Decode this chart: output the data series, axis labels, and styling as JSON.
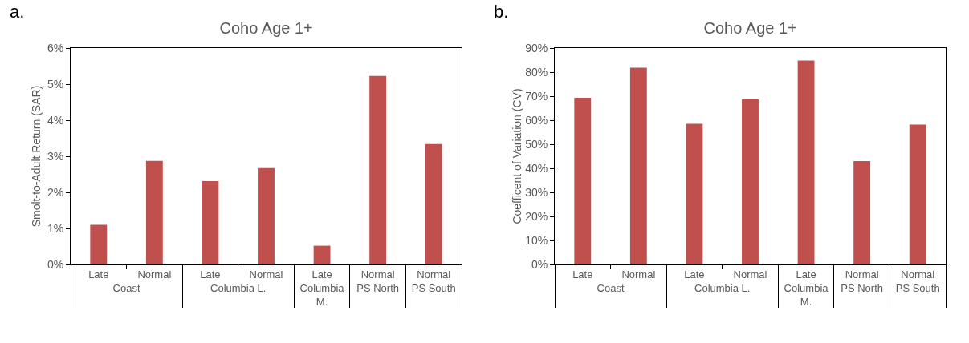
{
  "chart_data": [
    {
      "type": "bar",
      "title": "Coho Age 1+",
      "ylabel": "Smolt-to-Adult Return (SAR)",
      "annotations": [
        "a.",
        "Coast",
        "Columbia L.",
        "Columbia M.",
        "PS North",
        "PS South"
      ],
      "categories": [
        "Late",
        "Normal",
        "Late",
        "Normal",
        "Late",
        "Normal",
        "Normal"
      ],
      "values": [
        1.1,
        2.87,
        2.31,
        2.67,
        0.52,
        5.23,
        3.34
      ],
      "color": "#c0504d",
      "ylim": [
        0,
        6
      ],
      "yticks": [
        {
          "value": 0,
          "label": "0%"
        },
        {
          "value": 1,
          "label": "1%"
        },
        {
          "value": 2,
          "label": "2%"
        },
        {
          "value": 3,
          "label": "3%"
        },
        {
          "value": 4,
          "label": "4%"
        },
        {
          "value": 5,
          "label": "5%"
        },
        {
          "value": 6,
          "label": "6%"
        }
      ],
      "grid": false
    },
    {
      "type": "bar",
      "title": "Coho Age 1+",
      "ylabel": "Coefficent of Variation (CV)",
      "annotations": [
        "b.",
        "Coast",
        "Columbia L.",
        "Columbia M.",
        "PS North",
        "PS South"
      ],
      "categories": [
        "Late",
        "Normal",
        "Late",
        "Normal",
        "Late",
        "Normal",
        "Normal"
      ],
      "values": [
        69.3,
        81.8,
        58.5,
        68.7,
        84.8,
        43,
        58.2
      ],
      "color": "#c0504d",
      "ylim": [
        0,
        90
      ],
      "yticks": [
        {
          "value": 0,
          "label": "0%"
        },
        {
          "value": 10,
          "label": "10%"
        },
        {
          "value": 20,
          "label": "20%"
        },
        {
          "value": 30,
          "label": "30%"
        },
        {
          "value": 40,
          "label": "40%"
        },
        {
          "value": 50,
          "label": "50%"
        },
        {
          "value": 60,
          "label": "60%"
        },
        {
          "value": 70,
          "label": "70%"
        },
        {
          "value": 80,
          "label": "80%"
        },
        {
          "value": 90,
          "label": "90%"
        }
      ],
      "grid": false
    }
  ]
}
